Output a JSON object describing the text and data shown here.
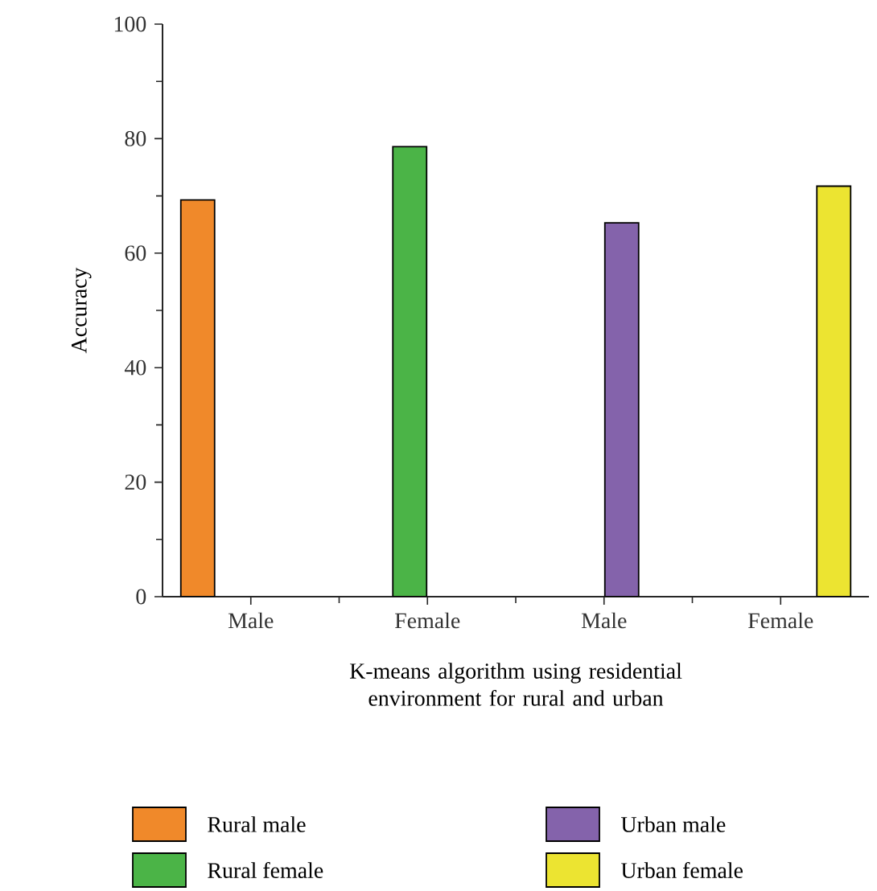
{
  "chart_data": {
    "type": "bar",
    "xlabel": "K-means algorithm using residential environment for rural and urban",
    "ylabel": "Accuracy",
    "categories": [
      "Male",
      "Female",
      "Male",
      "Female"
    ],
    "series": [
      {
        "name": "Rural male",
        "color": "#f0892a",
        "values": [
          69.3,
          null,
          null,
          null
        ]
      },
      {
        "name": "Rural female",
        "color": "#4bb447",
        "values": [
          null,
          78.6,
          null,
          null
        ]
      },
      {
        "name": "Urban male",
        "color": "#8463ab",
        "values": [
          null,
          null,
          65.3,
          null
        ]
      },
      {
        "name": "Urban female",
        "color": "#ece431",
        "values": [
          null,
          null,
          null,
          71.7
        ]
      }
    ],
    "ylim": [
      0,
      100
    ],
    "yticks": [
      0,
      {
        "value": 10,
        "label": null
      },
      20,
      {
        "value": 30,
        "label": null
      },
      40,
      {
        "value": 50,
        "label": null
      },
      60,
      {
        "value": 70,
        "label": null
      },
      80,
      {
        "value": 90,
        "label": null
      },
      100
    ],
    "legend": "bottom"
  }
}
